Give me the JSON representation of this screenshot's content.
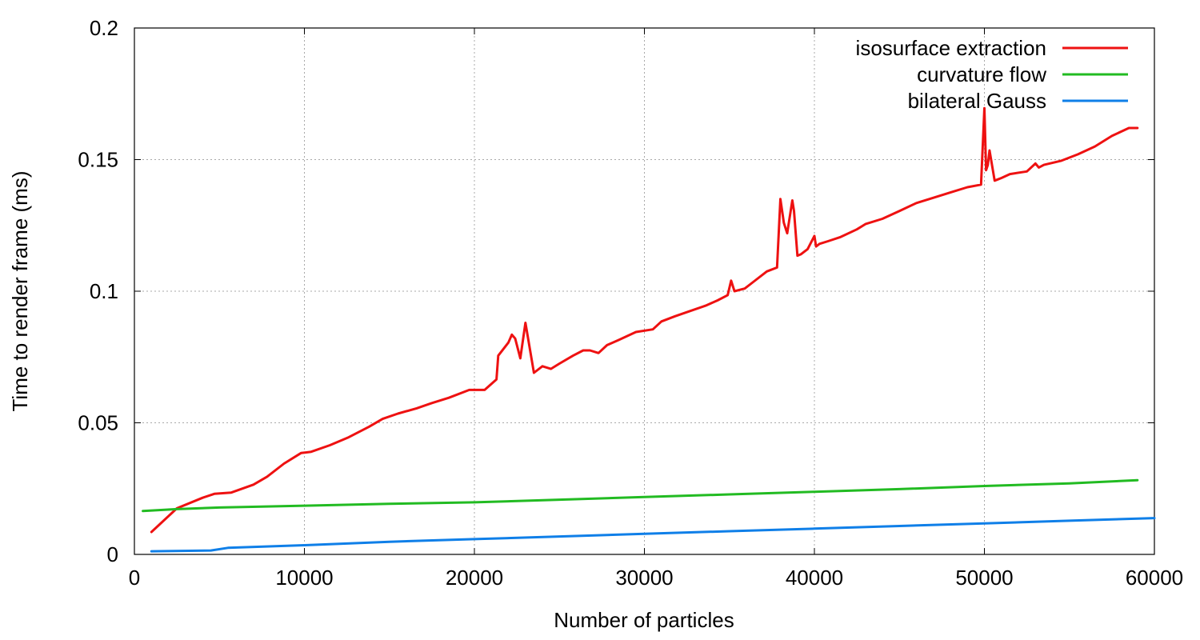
{
  "chart_data": {
    "type": "line",
    "title": "",
    "xlabel": "Number of particles",
    "ylabel": "Time to render frame (ms)",
    "xlim": [
      0,
      60000
    ],
    "ylim": [
      0,
      0.2
    ],
    "xticks": [
      "0",
      "10000",
      "20000",
      "30000",
      "40000",
      "50000",
      "60000"
    ],
    "xtick_values": [
      0,
      10000,
      20000,
      30000,
      40000,
      50000,
      60000
    ],
    "yticks": [
      "0",
      "0.05",
      "0.1",
      "0.15",
      "0.2"
    ],
    "ytick_values": [
      0,
      0.05,
      0.1,
      0.15,
      0.2
    ],
    "grid": true,
    "legend_position": "top-right",
    "series": [
      {
        "name": "isosurface extraction",
        "color": "#ee1111",
        "x": [
          1000,
          2500,
          4000,
          4700,
          5700,
          7000,
          7800,
          8800,
          9800,
          10400,
          11500,
          12600,
          13800,
          14600,
          15500,
          16600,
          17500,
          18500,
          19700,
          20600,
          21300,
          21400,
          21700,
          22000,
          22200,
          22400,
          22700,
          23000,
          23500,
          24000,
          24500,
          25000,
          25800,
          26400,
          26800,
          27300,
          27800,
          28500,
          29500,
          30500,
          31000,
          31800,
          32700,
          33600,
          34300,
          34900,
          35100,
          35300,
          35900,
          36400,
          37200,
          37800,
          38000,
          38200,
          38400,
          38700,
          38800,
          39000,
          39200,
          39600,
          40000,
          40100,
          40300,
          40800,
          41500,
          42500,
          43000,
          44000,
          45000,
          46000,
          47000,
          48000,
          49000,
          49800,
          50000,
          50100,
          50200,
          50300,
          50600,
          50800,
          51000,
          51500,
          52500,
          53000,
          53200,
          53500,
          54500,
          55500,
          56500,
          57500,
          58500,
          59000
        ],
        "y": [
          0.0085,
          0.0175,
          0.0215,
          0.023,
          0.0235,
          0.0265,
          0.0295,
          0.0345,
          0.0385,
          0.039,
          0.0415,
          0.0445,
          0.0485,
          0.0515,
          0.0535,
          0.0555,
          0.0575,
          0.0595,
          0.0625,
          0.0625,
          0.0665,
          0.0755,
          0.078,
          0.0805,
          0.0835,
          0.082,
          0.0745,
          0.088,
          0.069,
          0.0715,
          0.0705,
          0.0725,
          0.0755,
          0.0775,
          0.0775,
          0.0765,
          0.0795,
          0.0815,
          0.0845,
          0.0855,
          0.0885,
          0.0905,
          0.0925,
          0.0945,
          0.0965,
          0.0985,
          0.104,
          0.1,
          0.101,
          0.1035,
          0.1075,
          0.109,
          0.135,
          0.126,
          0.122,
          0.1345,
          0.1305,
          0.1135,
          0.114,
          0.116,
          0.121,
          0.117,
          0.118,
          0.119,
          0.1205,
          0.1235,
          0.1255,
          0.1275,
          0.1305,
          0.1335,
          0.1355,
          0.1375,
          0.1395,
          0.1405,
          0.1695,
          0.146,
          0.148,
          0.1535,
          0.142,
          0.1425,
          0.143,
          0.1445,
          0.1455,
          0.1485,
          0.147,
          0.148,
          0.1495,
          0.152,
          0.155,
          0.159,
          0.162,
          0.162
        ]
      },
      {
        "name": "curvature flow",
        "color": "#22bb22",
        "x": [
          500,
          2500,
          5000,
          10000,
          15000,
          20000,
          25000,
          30000,
          35000,
          40000,
          45000,
          50000,
          55000,
          59000
        ],
        "y": [
          0.0165,
          0.0172,
          0.0178,
          0.0185,
          0.0192,
          0.0198,
          0.0208,
          0.0218,
          0.0228,
          0.0238,
          0.0248,
          0.026,
          0.027,
          0.0282
        ]
      },
      {
        "name": "bilateral Gauss",
        "color": "#0f7fe8",
        "x": [
          1000,
          4500,
          5500,
          10000,
          15000,
          20000,
          25000,
          30000,
          35000,
          40000,
          45000,
          50000,
          55000,
          60000
        ],
        "y": [
          0.0012,
          0.0015,
          0.0025,
          0.0035,
          0.0048,
          0.0058,
          0.0068,
          0.0078,
          0.0088,
          0.0098,
          0.0108,
          0.0118,
          0.0128,
          0.0138
        ]
      }
    ]
  }
}
